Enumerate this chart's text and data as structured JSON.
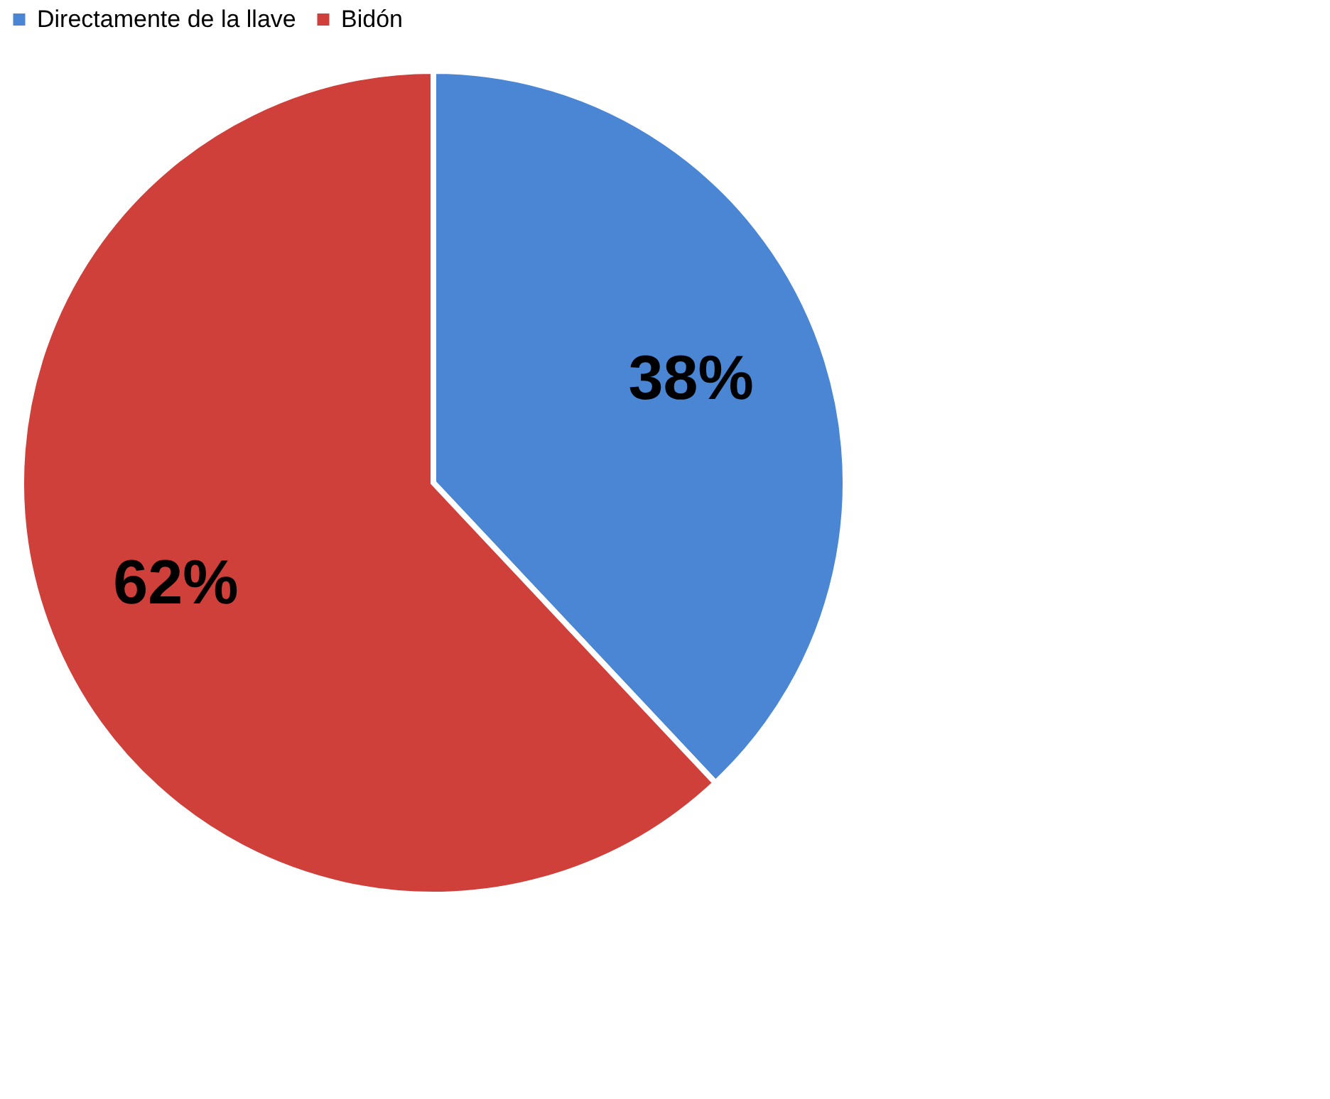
{
  "chart_data": {
    "type": "pie",
    "categories": [
      "Directamente de la llave",
      "Bidón"
    ],
    "values": [
      38,
      62
    ],
    "colors": [
      "#4a86d4",
      "#cf403b"
    ],
    "value_labels": [
      "38%",
      "62%"
    ],
    "legend": "top"
  }
}
